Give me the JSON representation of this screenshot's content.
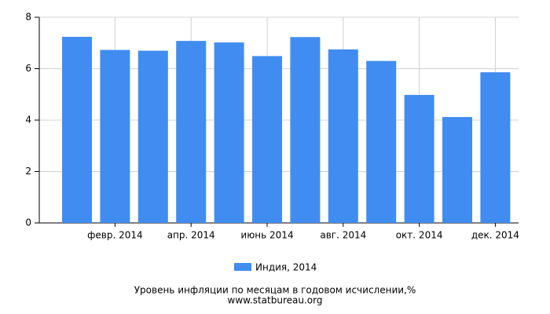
{
  "chart_data": {
    "type": "bar",
    "title": "Уровень инфляции по месяцам в годовом исчислении,%",
    "source": "www.statbureau.org",
    "categories": [
      null,
      "февр. 2014",
      null,
      "апр. 2014",
      null,
      "июнь 2014",
      null,
      "авг. 2014",
      null,
      "окт. 2014",
      null,
      "дек. 2014"
    ],
    "series": [
      {
        "name": "Индия, 2014",
        "color": "#418cf0",
        "values": [
          7.24,
          6.73,
          6.7,
          7.08,
          7.02,
          6.49,
          7.23,
          6.75,
          6.3,
          4.98,
          4.12,
          5.86
        ]
      }
    ],
    "ylim": [
      0,
      8
    ],
    "yticks": [
      0,
      2,
      4,
      6,
      8
    ],
    "grid": true
  }
}
